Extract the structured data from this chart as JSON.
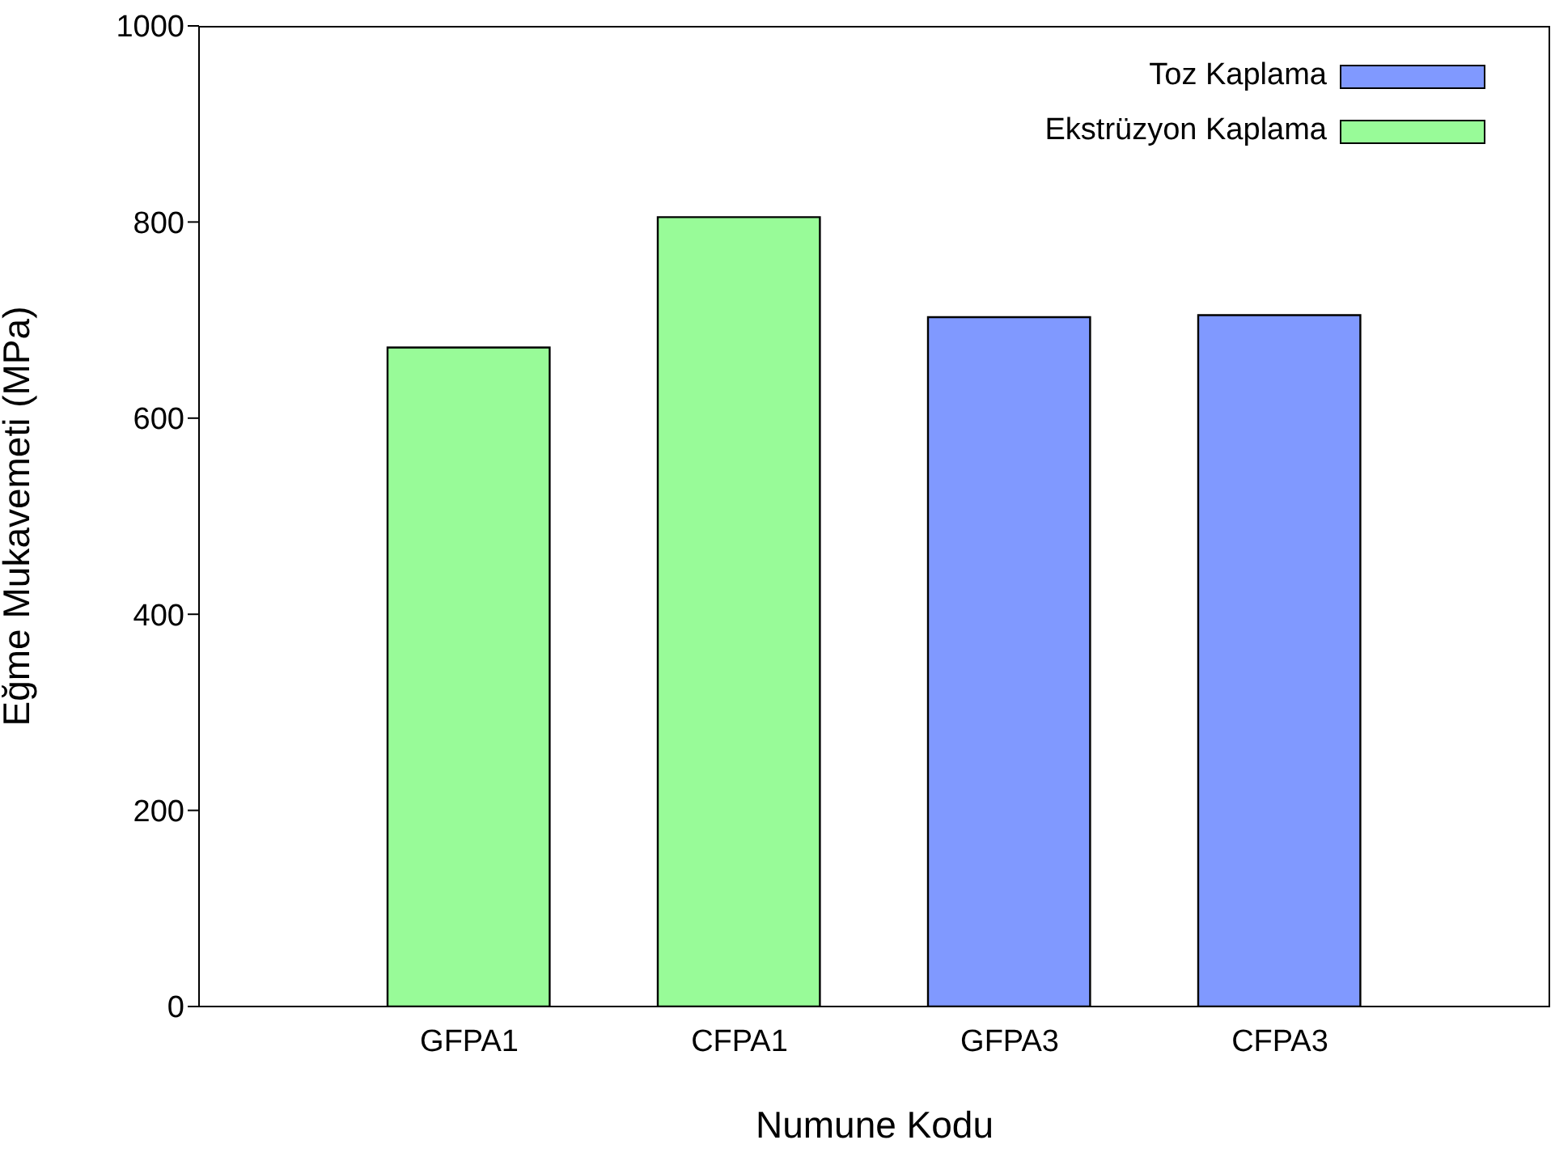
{
  "chart_data": {
    "type": "bar",
    "stacked": true,
    "xlabel": "Numune Kodu",
    "ylabel": "Eğme Mukavemeti (MPa)",
    "categories": [
      "GFPA1",
      "CFPA1",
      "GFPA3",
      "CFPA3"
    ],
    "series": [
      {
        "name": "Toz Kaplama",
        "color": "#8099ff",
        "values": [
          null,
          null,
          703,
          705
        ]
      },
      {
        "name": "Ekstrüzyon Kaplama",
        "color": "#98fb98",
        "values": [
          672,
          805,
          null,
          null
        ]
      }
    ],
    "ylim": [
      0,
      1000
    ],
    "yticks": [
      0,
      200,
      400,
      600,
      800,
      1000
    ],
    "legend": "top right"
  }
}
